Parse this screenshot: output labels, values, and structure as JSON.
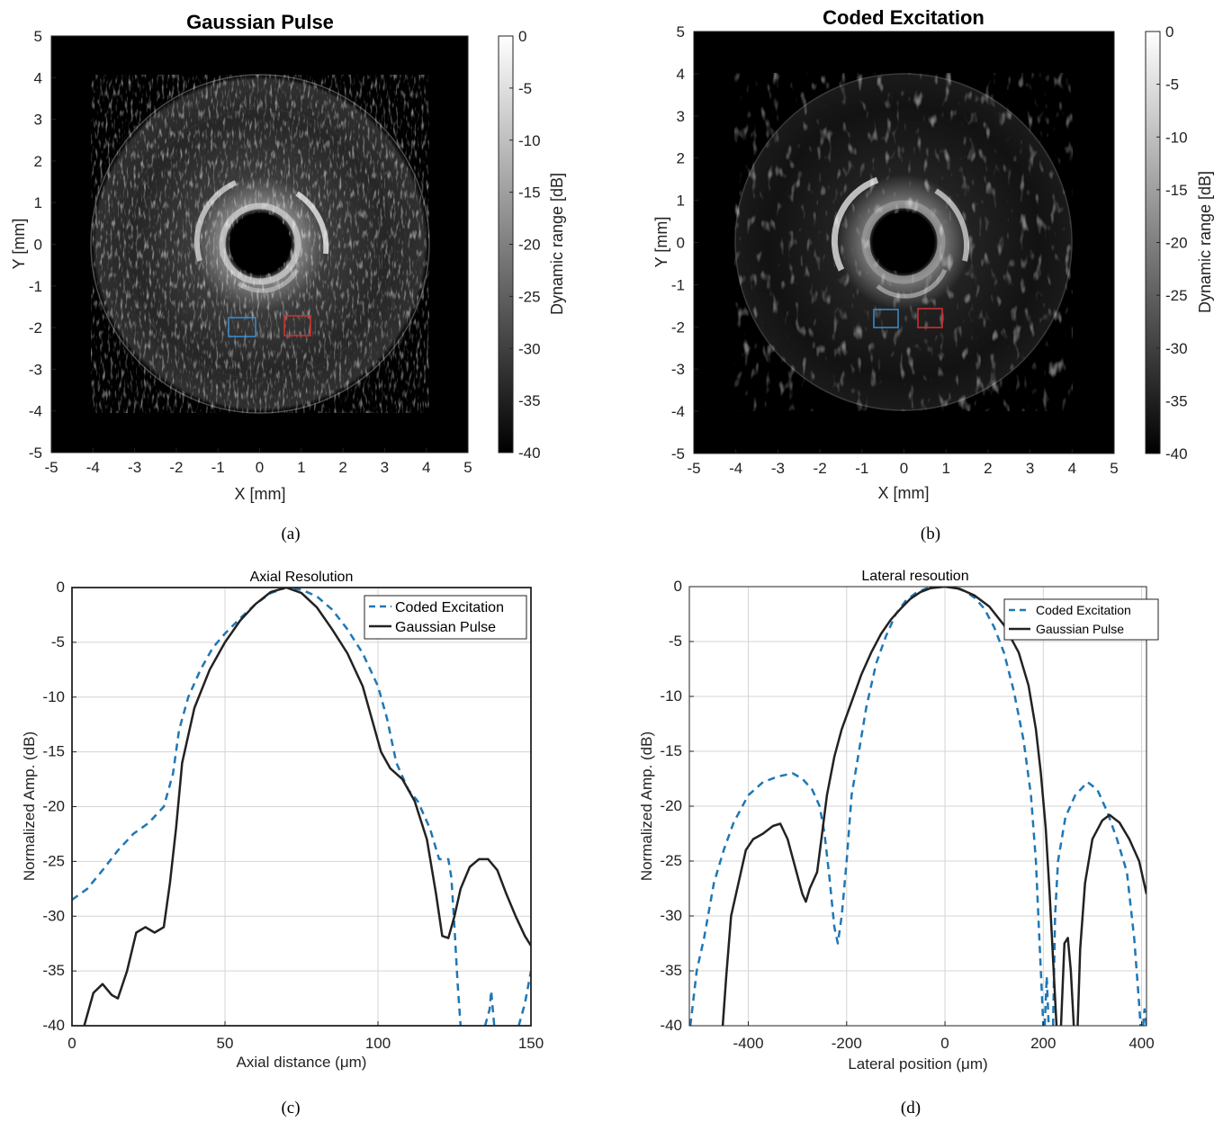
{
  "chart_data": [
    {
      "type": "heatmap",
      "title": "Gaussian Pulse",
      "caption": "(a)",
      "xlabel": "X [mm]",
      "ylabel": "Y [mm]",
      "xlim": [
        -5,
        5
      ],
      "ylim": [
        -5,
        5
      ],
      "xticks": [
        "-5",
        "-4",
        "-3",
        "-2",
        "-1",
        "0",
        "1",
        "2",
        "3",
        "4",
        "5"
      ],
      "yticks": [
        "5",
        "4",
        "3",
        "2",
        "1",
        "0",
        "-1",
        "-2",
        "-3",
        "-4",
        "-5"
      ],
      "colorbar": {
        "label": "Dynamic range [dB]",
        "range": [
          -40,
          0
        ],
        "ticks": [
          "0",
          "-5",
          "-10",
          "-15",
          "-20",
          "-25",
          "-30",
          "-35",
          "-40"
        ]
      },
      "image": {
        "lumen_radius_mm": 0.75,
        "inner_wall_radius_mm": 1.5,
        "outer_radius_mm": 4.05
      },
      "roi_boxes": [
        {
          "color": "#3a8fd0",
          "x_range_mm": [
            -0.75,
            -0.1
          ],
          "y_range_mm": [
            -2.15,
            -1.7
          ]
        },
        {
          "color": "#d83030",
          "x_range_mm": [
            0.6,
            1.2
          ],
          "y_range_mm": [
            -2.15,
            -1.7
          ]
        }
      ]
    },
    {
      "type": "heatmap",
      "title": "Coded Excitation",
      "caption": "(b)",
      "xlabel": "X [mm]",
      "ylabel": "Y [mm]",
      "xlim": [
        -5,
        5
      ],
      "ylim": [
        -5,
        5
      ],
      "xticks": [
        "-5",
        "-4",
        "-3",
        "-2",
        "-1",
        "0",
        "1",
        "2",
        "3",
        "4",
        "5"
      ],
      "yticks": [
        "5",
        "4",
        "3",
        "2",
        "1",
        "0",
        "-1",
        "-2",
        "-3",
        "-4",
        "-5"
      ],
      "colorbar": {
        "label": "Dynamic range [dB]",
        "range": [
          -40,
          0
        ],
        "ticks": [
          "0",
          "-5",
          "-10",
          "-15",
          "-20",
          "-25",
          "-30",
          "-35",
          "-40"
        ]
      },
      "image": {
        "lumen_radius_mm": 0.75,
        "inner_wall_radius_mm": 1.5,
        "outer_radius_mm": 4.0
      },
      "roi_boxes": [
        {
          "color": "#3a8fd0",
          "x_range_mm": [
            -0.7,
            -0.1
          ],
          "y_range_mm": [
            -2.0,
            -1.55
          ]
        },
        {
          "color": "#d83030",
          "x_range_mm": [
            0.35,
            0.95
          ],
          "y_range_mm": [
            -2.0,
            -1.55
          ]
        }
      ]
    },
    {
      "type": "line",
      "title": "Axial Resolution",
      "caption": "(c)",
      "xlabel": "Axial distance (μm)",
      "ylabel": "Normalized Amp. (dB)",
      "xlim": [
        0,
        150
      ],
      "ylim": [
        -40,
        0
      ],
      "xticks": [
        "0",
        "50",
        "100",
        "150"
      ],
      "yticks": [
        "0",
        "-5",
        "-10",
        "-15",
        "-20",
        "-25",
        "-30",
        "-35",
        "-40"
      ],
      "grid": true,
      "legend_position": "top-right",
      "series": [
        {
          "name": "Coded Excitation",
          "color": "#1f77b4",
          "dash": "dashed",
          "points": [
            [
              0,
              -28.5
            ],
            [
              5,
              -27.5
            ],
            [
              10,
              -25.8
            ],
            [
              15,
              -24
            ],
            [
              20,
              -22.5
            ],
            [
              25,
              -21.5
            ],
            [
              30,
              -20
            ],
            [
              33,
              -17
            ],
            [
              35,
              -13
            ],
            [
              38,
              -10
            ],
            [
              42,
              -7.5
            ],
            [
              46,
              -5.5
            ],
            [
              50,
              -4.2
            ],
            [
              55,
              -2.8
            ],
            [
              60,
              -1.5
            ],
            [
              65,
              -0.5
            ],
            [
              70,
              0
            ],
            [
              75,
              -0.2
            ],
            [
              80,
              -0.8
            ],
            [
              85,
              -2
            ],
            [
              90,
              -3.8
            ],
            [
              95,
              -6
            ],
            [
              100,
              -9
            ],
            [
              103,
              -12
            ],
            [
              106,
              -16
            ],
            [
              110,
              -18.5
            ],
            [
              113,
              -19.5
            ],
            [
              117,
              -22
            ],
            [
              120,
              -24.8
            ],
            [
              123,
              -24.8
            ],
            [
              124,
              -26.5
            ],
            [
              125,
              -31
            ],
            [
              126,
              -36
            ],
            [
              127,
              -40
            ]
          ]
        },
        {
          "name": "Coded Excitation (segment 2)",
          "color": "#1f77b4",
          "dash": "dashed",
          "points": [
            [
              135,
              -40
            ],
            [
              136.5,
              -38.5
            ],
            [
              137,
              -36.8
            ],
            [
              138,
              -40
            ]
          ]
        },
        {
          "name": "Coded Excitation (segment 3)",
          "color": "#1f77b4",
          "dash": "dashed",
          "points": [
            [
              146,
              -40
            ],
            [
              148,
              -38
            ],
            [
              150,
              -35
            ]
          ]
        },
        {
          "name": "Gaussian Pulse",
          "color": "#222222",
          "dash": "solid",
          "points": [
            [
              4,
              -40
            ],
            [
              7,
              -37
            ],
            [
              10,
              -36.2
            ],
            [
              13,
              -37.2
            ],
            [
              15,
              -37.5
            ],
            [
              18,
              -35
            ],
            [
              21,
              -31.5
            ],
            [
              24,
              -31
            ],
            [
              27,
              -31.5
            ],
            [
              30,
              -31
            ],
            [
              32,
              -27
            ],
            [
              34,
              -22
            ],
            [
              36,
              -16
            ],
            [
              40,
              -11
            ],
            [
              45,
              -7.5
            ],
            [
              50,
              -5
            ],
            [
              55,
              -3
            ],
            [
              60,
              -1.5
            ],
            [
              65,
              -0.4
            ],
            [
              70,
              0
            ],
            [
              75,
              -0.5
            ],
            [
              80,
              -1.8
            ],
            [
              85,
              -3.8
            ],
            [
              90,
              -6
            ],
            [
              95,
              -9
            ],
            [
              98,
              -12
            ],
            [
              101,
              -15
            ],
            [
              104,
              -16.5
            ],
            [
              108,
              -17.5
            ],
            [
              112,
              -19.5
            ],
            [
              116,
              -23
            ],
            [
              119,
              -28
            ],
            [
              121,
              -31.8
            ],
            [
              123,
              -32
            ],
            [
              125,
              -30
            ],
            [
              127,
              -27.5
            ],
            [
              130,
              -25.5
            ],
            [
              133,
              -24.8
            ],
            [
              136,
              -24.8
            ],
            [
              139,
              -25.8
            ],
            [
              142,
              -28
            ],
            [
              145,
              -30
            ],
            [
              148,
              -31.8
            ],
            [
              150,
              -32.7
            ]
          ]
        }
      ]
    },
    {
      "type": "line",
      "title": "Lateral resoution",
      "caption": "(d)",
      "xlabel": "Lateral position (μm)",
      "ylabel": "Normalized Amp. (dB)",
      "xlim": [
        -520,
        410
      ],
      "ylim": [
        -40,
        0
      ],
      "xticks": [
        "-400",
        "-200",
        "0",
        "200",
        "400"
      ],
      "yticks": [
        "0",
        "-5",
        "-10",
        "-15",
        "-20",
        "-25",
        "-30",
        "-35",
        "-40"
      ],
      "grid": true,
      "legend_position": "top-right",
      "series": [
        {
          "name": "Coded Excitation",
          "color": "#1f77b4",
          "dash": "dashed",
          "points": [
            [
              -518,
              -40
            ],
            [
              -505,
              -35
            ],
            [
              -490,
              -32
            ],
            [
              -470,
              -27
            ],
            [
              -450,
              -24
            ],
            [
              -430,
              -21.5
            ],
            [
              -400,
              -19
            ],
            [
              -370,
              -17.8
            ],
            [
              -340,
              -17.3
            ],
            [
              -310,
              -17
            ],
            [
              -290,
              -17.5
            ],
            [
              -270,
              -18.5
            ],
            [
              -255,
              -20
            ],
            [
              -245,
              -22.5
            ],
            [
              -235,
              -26.5
            ],
            [
              -225,
              -31
            ],
            [
              -218,
              -32.5
            ],
            [
              -210,
              -30
            ],
            [
              -200,
              -25
            ],
            [
              -190,
              -19
            ],
            [
              -175,
              -15
            ],
            [
              -160,
              -11
            ],
            [
              -140,
              -7
            ],
            [
              -120,
              -4.5
            ],
            [
              -100,
              -2.5
            ],
            [
              -80,
              -1.3
            ],
            [
              -60,
              -0.6
            ],
            [
              -40,
              -0.2
            ],
            [
              -20,
              0
            ],
            [
              0,
              0
            ],
            [
              20,
              -0.1
            ],
            [
              40,
              -0.4
            ],
            [
              60,
              -1
            ],
            [
              80,
              -2
            ],
            [
              100,
              -3.7
            ],
            [
              120,
              -6
            ],
            [
              140,
              -9.5
            ],
            [
              160,
              -14
            ],
            [
              175,
              -19
            ],
            [
              185,
              -25
            ],
            [
              192,
              -32
            ],
            [
              197,
              -37
            ],
            [
              200,
              -40
            ]
          ]
        },
        {
          "name": "Coded Excitation (segment 2)",
          "color": "#1f77b4",
          "dash": "dashed",
          "points": [
            [
              203,
              -40
            ],
            [
              207,
              -35.5
            ],
            [
              211,
              -40
            ]
          ]
        },
        {
          "name": "Coded Excitation (segment 3)",
          "color": "#1f77b4",
          "dash": "dashed",
          "points": [
            [
              220,
              -40
            ],
            [
              224,
              -30
            ],
            [
              230,
              -25
            ],
            [
              245,
              -21
            ],
            [
              265,
              -19
            ],
            [
              290,
              -17.8
            ],
            [
              310,
              -18.5
            ],
            [
              330,
              -20.5
            ],
            [
              350,
              -23
            ],
            [
              370,
              -26
            ],
            [
              385,
              -32
            ],
            [
              395,
              -38
            ],
            [
              398,
              -40
            ]
          ]
        },
        {
          "name": "Coded Excitation (segment 4)",
          "color": "#1f77b4",
          "dash": "dashed",
          "points": [
            [
              403,
              -40
            ],
            [
              406,
              -38.5
            ],
            [
              410,
              -40
            ]
          ]
        },
        {
          "name": "Gaussian Pulse",
          "color": "#222222",
          "dash": "solid",
          "points": [
            [
              -452,
              -40
            ],
            [
              -445,
              -35.5
            ],
            [
              -435,
              -30
            ],
            [
              -420,
              -27
            ],
            [
              -405,
              -24
            ],
            [
              -390,
              -23
            ],
            [
              -370,
              -22.5
            ],
            [
              -350,
              -21.8
            ],
            [
              -335,
              -21.6
            ],
            [
              -320,
              -23
            ],
            [
              -305,
              -25.5
            ],
            [
              -290,
              -28
            ],
            [
              -283,
              -28.7
            ],
            [
              -275,
              -27.5
            ],
            [
              -260,
              -26
            ],
            [
              -250,
              -22.5
            ],
            [
              -240,
              -19
            ],
            [
              -225,
              -15.5
            ],
            [
              -210,
              -13
            ],
            [
              -190,
              -10.5
            ],
            [
              -170,
              -8
            ],
            [
              -150,
              -6
            ],
            [
              -130,
              -4.3
            ],
            [
              -110,
              -3
            ],
            [
              -90,
              -2
            ],
            [
              -70,
              -1.1
            ],
            [
              -50,
              -0.5
            ],
            [
              -30,
              -0.15
            ],
            [
              0,
              0
            ],
            [
              30,
              -0.2
            ],
            [
              60,
              -0.8
            ],
            [
              90,
              -1.8
            ],
            [
              120,
              -3.5
            ],
            [
              150,
              -6
            ],
            [
              170,
              -9
            ],
            [
              185,
              -13
            ],
            [
              195,
              -17
            ],
            [
              205,
              -22
            ],
            [
              213,
              -28
            ],
            [
              220,
              -34
            ],
            [
              227,
              -40
            ]
          ]
        },
        {
          "name": "Gaussian Pulse (segment 2)",
          "color": "#222222",
          "dash": "solid",
          "points": [
            [
              236,
              -40
            ],
            [
              243,
              -32.5
            ],
            [
              250,
              -32
            ],
            [
              256,
              -35
            ],
            [
              262,
              -40
            ]
          ]
        },
        {
          "name": "Gaussian Pulse (segment 3)",
          "color": "#222222",
          "dash": "solid",
          "points": [
            [
              270,
              -40
            ],
            [
              275,
              -33
            ],
            [
              285,
              -27
            ],
            [
              300,
              -23
            ],
            [
              320,
              -21.3
            ],
            [
              335,
              -20.8
            ],
            [
              355,
              -21.5
            ],
            [
              375,
              -23
            ],
            [
              395,
              -25
            ],
            [
              410,
              -28
            ]
          ]
        }
      ]
    }
  ]
}
